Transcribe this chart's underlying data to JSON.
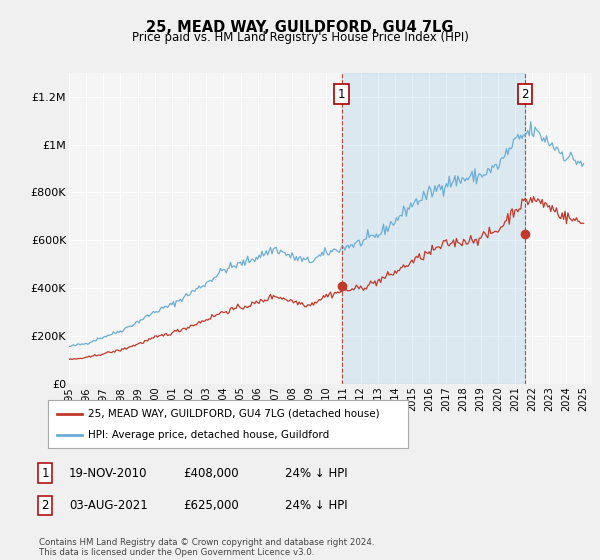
{
  "title": "25, MEAD WAY, GUILDFORD, GU4 7LG",
  "subtitle": "Price paid vs. HM Land Registry's House Price Index (HPI)",
  "ylim": [
    0,
    1300000
  ],
  "xlim": [
    1995.0,
    2025.5
  ],
  "hpi_color": "#6baed6",
  "red_color": "#c0392b",
  "dot_color": "#c0392b",
  "vline_color": "#c0392b",
  "shade_color": "#ddeeff",
  "bg_color": "#f0f0f0",
  "plot_bg": "#f5f5f5",
  "grid_color": "#ffffff",
  "legend_label_red": "25, MEAD WAY, GUILDFORD, GU4 7LG (detached house)",
  "legend_label_hpi": "HPI: Average price, detached house, Guildford",
  "transaction1_year": 2010.9,
  "transaction1_value": 408000,
  "transaction2_year": 2021.58,
  "transaction2_value": 625000,
  "table_rows": [
    {
      "num": "1",
      "date": "19-NOV-2010",
      "price": "£408,000",
      "pct": "24% ↓ HPI"
    },
    {
      "num": "2",
      "date": "03-AUG-2021",
      "price": "£625,000",
      "pct": "24% ↓ HPI"
    }
  ],
  "footer": "Contains HM Land Registry data © Crown copyright and database right 2024.\nThis data is licensed under the Open Government Licence v3.0.",
  "yticks": [
    0,
    200000,
    400000,
    600000,
    800000,
    1000000,
    1200000
  ],
  "ytick_labels": [
    "£0",
    "£200K",
    "£400K",
    "£600K",
    "£800K",
    "£1M",
    "£1.2M"
  ]
}
